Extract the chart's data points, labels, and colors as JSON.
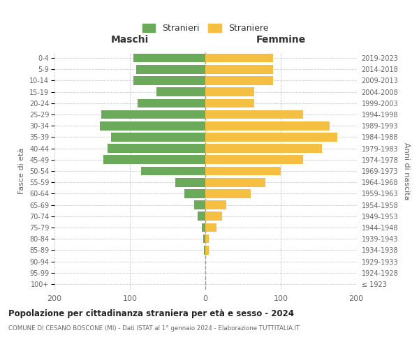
{
  "age_groups": [
    "100+",
    "95-99",
    "90-94",
    "85-89",
    "80-84",
    "75-79",
    "70-74",
    "65-69",
    "60-64",
    "55-59",
    "50-54",
    "45-49",
    "40-44",
    "35-39",
    "30-34",
    "25-29",
    "20-24",
    "15-19",
    "10-14",
    "5-9",
    "0-4"
  ],
  "birth_years": [
    "≤ 1923",
    "1924-1928",
    "1929-1933",
    "1934-1938",
    "1939-1943",
    "1944-1948",
    "1949-1953",
    "1954-1958",
    "1959-1963",
    "1964-1968",
    "1969-1973",
    "1974-1978",
    "1979-1983",
    "1984-1988",
    "1989-1993",
    "1994-1998",
    "1999-2003",
    "2004-2008",
    "2009-2013",
    "2014-2018",
    "2019-2023"
  ],
  "maschi": [
    0,
    0,
    0,
    2,
    3,
    5,
    10,
    15,
    28,
    40,
    85,
    135,
    130,
    125,
    140,
    138,
    90,
    65,
    95,
    92,
    95
  ],
  "femmine": [
    0,
    0,
    0,
    5,
    5,
    15,
    22,
    28,
    60,
    80,
    100,
    130,
    155,
    175,
    165,
    130,
    65,
    65,
    90,
    90,
    90
  ],
  "bar_color_maschi": "#6aaa5a",
  "bar_color_femmine": "#f5bf42",
  "title": "Popolazione per cittadinanza straniera per età e sesso - 2024",
  "subtitle": "COMUNE DI CESANO BOSCONE (MI) - Dati ISTAT al 1° gennaio 2024 - Elaborazione TUTTITALIA.IT",
  "ylabel_left": "Fasce di età",
  "ylabel_right": "Anni di nascita",
  "label_maschi": "Maschi",
  "label_femmine": "Femmine",
  "legend_maschi": "Stranieri",
  "legend_femmine": "Straniere",
  "xlim": 200,
  "background_color": "#ffffff",
  "grid_color": "#cccccc"
}
